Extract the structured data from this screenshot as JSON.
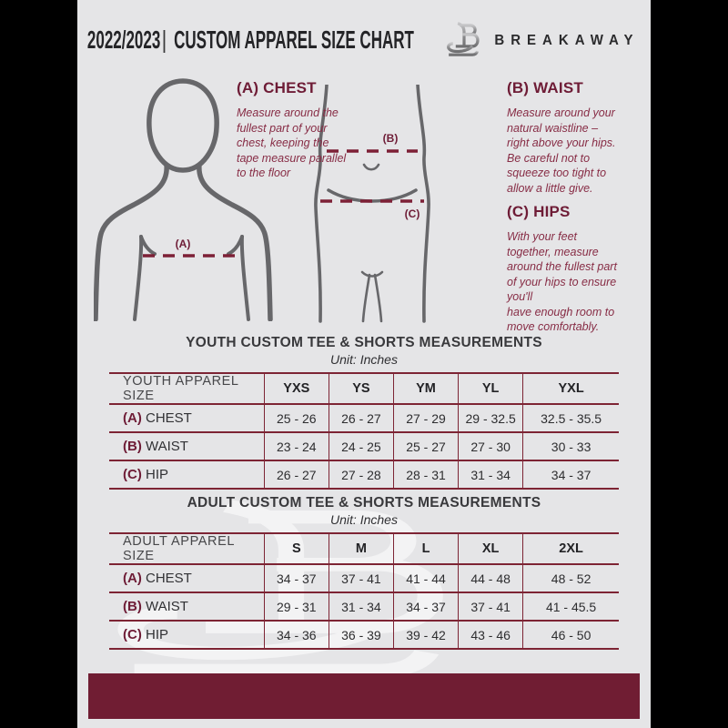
{
  "header": {
    "year": "2022/2023",
    "separator": "|",
    "title": "CUSTOM APPAREL SIZE CHART",
    "brand": "BREAKAWAY",
    "logo_icon": "breakaway-b-logo"
  },
  "guide": {
    "chest": {
      "heading": "(A) CHEST",
      "body": "Measure around the\nfullest part of your\nchest, keeping the\ntape measure parallel\nto the floor"
    },
    "waist": {
      "heading": "(B) WAIST",
      "body": "Measure around your\nnatural waistline –\nright above your hips.\nBe careful not to\nsqueeze too tight to\nallow a little give."
    },
    "hips": {
      "heading": "(C) HIPS",
      "body": "With your feet\ntogether, measure\naround the fullest part\nof your hips to ensure\nyou'll\nhave enough room to\nmove comfortably."
    },
    "marker_a": "(A)",
    "marker_b": "(B)",
    "marker_c": "(C)"
  },
  "tables": [
    {
      "title": "YOUTH CUSTOM TEE & SHORTS MEASUREMENTS",
      "unit": "Unit: Inches",
      "header": [
        "YOUTH APPAREL SIZE",
        "YXS",
        "YS",
        "YM",
        "YL",
        "YXL"
      ],
      "rows": [
        {
          "prefix": "(A)",
          "label": "CHEST",
          "values": [
            "25 - 26",
            "26 - 27",
            "27 - 29",
            "29 - 32.5",
            "32.5 - 35.5"
          ]
        },
        {
          "prefix": "(B)",
          "label": "WAIST",
          "values": [
            "23 - 24",
            "24 - 25",
            "25 - 27",
            "27 - 30",
            "30 - 33"
          ]
        },
        {
          "prefix": "(C)",
          "label": "HIP",
          "values": [
            "26 - 27",
            "27 - 28",
            "28 - 31",
            "31 - 34",
            "34 - 37"
          ]
        }
      ]
    },
    {
      "title": "ADULT CUSTOM TEE & SHORTS MEASUREMENTS",
      "unit": "Unit: Inches",
      "header": [
        "ADULT APPAREL SIZE",
        "S",
        "M",
        "L",
        "XL",
        "2XL"
      ],
      "rows": [
        {
          "prefix": "(A)",
          "label": "CHEST",
          "values": [
            "34 - 37",
            "37 - 41",
            "41 - 44",
            "44 - 48",
            "48 - 52"
          ]
        },
        {
          "prefix": "(B)",
          "label": "WAIST",
          "values": [
            "29 - 31",
            "31 - 34",
            "34 - 37",
            "37 - 41",
            "41 - 45.5"
          ]
        },
        {
          "prefix": "(C)",
          "label": "HIP",
          "values": [
            "34 - 36",
            "36 - 39",
            "39 - 42",
            "43 - 46",
            "46 - 50"
          ]
        }
      ]
    }
  ],
  "colors": {
    "frame_bg": "#000000",
    "page_bg": "#e5e5e7",
    "maroon_footer": "#701d33",
    "maroon_heading": "#6e1c36",
    "maroon_italic_text": "#872c45",
    "table_line": "#7d2434",
    "dash_line": "#7d2036",
    "text_dark": "#2d2d2f",
    "silhouette_gray": "#67676a"
  }
}
